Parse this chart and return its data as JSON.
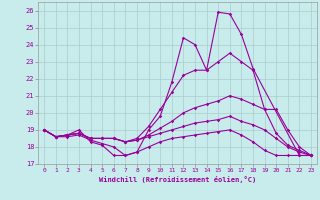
{
  "xlabel": "Windchill (Refroidissement éolien,°C)",
  "background_color": "#c8ecec",
  "line_color": "#990099",
  "grid_color": "#aacccc",
  "xlim": [
    -0.5,
    23.5
  ],
  "ylim": [
    17,
    26.5
  ],
  "yticks": [
    17,
    18,
    19,
    20,
    21,
    22,
    23,
    24,
    25,
    26
  ],
  "xticks": [
    0,
    1,
    2,
    3,
    4,
    5,
    6,
    7,
    8,
    9,
    10,
    11,
    12,
    13,
    14,
    15,
    16,
    17,
    18,
    19,
    20,
    21,
    22,
    23
  ],
  "lines": [
    {
      "x": [
        0,
        1,
        2,
        3,
        4,
        5,
        6,
        7,
        8,
        9,
        10,
        11,
        12,
        13,
        14,
        15,
        16,
        17,
        18,
        22,
        23
      ],
      "y": [
        19,
        18.6,
        18.7,
        19.0,
        18.3,
        18.1,
        17.5,
        17.5,
        17.7,
        19.0,
        19.8,
        21.8,
        24.4,
        24.0,
        22.5,
        25.9,
        25.8,
        24.6,
        22.6,
        17.5,
        17.5
      ]
    },
    {
      "x": [
        0,
        1,
        2,
        3,
        4,
        5,
        6,
        7,
        8,
        9,
        10,
        11,
        12,
        13,
        14,
        15,
        16,
        17,
        18,
        19,
        20,
        21,
        22,
        23
      ],
      "y": [
        19,
        18.6,
        18.7,
        18.8,
        18.5,
        18.5,
        18.5,
        18.3,
        18.5,
        19.2,
        20.2,
        21.2,
        22.2,
        22.5,
        22.5,
        23.0,
        23.5,
        23.0,
        22.5,
        20.2,
        18.8,
        18.1,
        17.8,
        17.5
      ]
    },
    {
      "x": [
        0,
        1,
        2,
        3,
        4,
        5,
        6,
        7,
        8,
        9,
        10,
        11,
        12,
        13,
        14,
        15,
        16,
        17,
        18,
        19,
        20,
        21,
        22,
        23
      ],
      "y": [
        19,
        18.6,
        18.7,
        18.8,
        18.5,
        18.5,
        18.5,
        18.3,
        18.4,
        18.7,
        19.1,
        19.5,
        20.0,
        20.3,
        20.5,
        20.7,
        21.0,
        20.8,
        20.5,
        20.2,
        20.2,
        19.0,
        18.0,
        17.5
      ]
    },
    {
      "x": [
        0,
        1,
        2,
        3,
        4,
        5,
        6,
        7,
        8,
        9,
        10,
        11,
        12,
        13,
        14,
        15,
        16,
        17,
        18,
        19,
        20,
        21,
        22,
        23
      ],
      "y": [
        19,
        18.6,
        18.7,
        18.8,
        18.5,
        18.5,
        18.5,
        18.3,
        18.4,
        18.6,
        18.8,
        19.0,
        19.2,
        19.4,
        19.5,
        19.6,
        19.8,
        19.5,
        19.3,
        19.0,
        18.5,
        18.0,
        17.7,
        17.5
      ]
    },
    {
      "x": [
        0,
        1,
        2,
        3,
        4,
        5,
        6,
        7,
        8,
        9,
        10,
        11,
        12,
        13,
        14,
        15,
        16,
        17,
        18,
        19,
        20,
        21,
        22,
        23
      ],
      "y": [
        19,
        18.6,
        18.6,
        18.7,
        18.4,
        18.2,
        18.0,
        17.5,
        17.7,
        18.0,
        18.3,
        18.5,
        18.6,
        18.7,
        18.8,
        18.9,
        19.0,
        18.7,
        18.3,
        17.8,
        17.5,
        17.5,
        17.5,
        17.5
      ]
    }
  ]
}
